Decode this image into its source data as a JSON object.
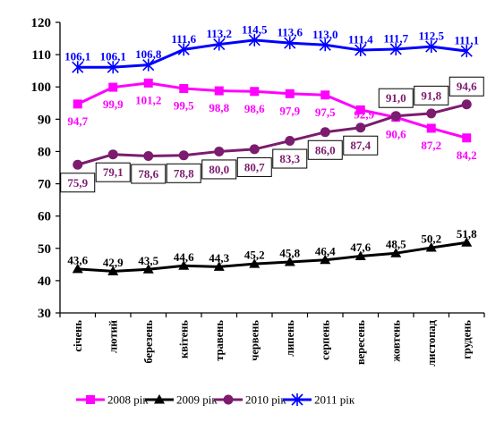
{
  "chart_data": {
    "type": "line",
    "categories": [
      "січень",
      "лютий",
      "березень",
      "квітень",
      "травень",
      "червень",
      "липень",
      "серпень",
      "вересень",
      "жовтень",
      "листопад",
      "грудень"
    ],
    "ylim": [
      30,
      120
    ],
    "yticks": [
      30,
      40,
      50,
      60,
      70,
      80,
      90,
      100,
      110,
      120
    ],
    "ytick_labels": [
      "30",
      "40",
      "50",
      "60",
      "70",
      "80",
      "90",
      "100",
      "110",
      "120"
    ],
    "grid": false,
    "legend_position": "bottom",
    "series": [
      {
        "name": "2008 рік",
        "color": "#FF00FF",
        "marker": "square",
        "values": [
          94.7,
          99.9,
          101.2,
          99.5,
          98.8,
          98.6,
          97.9,
          97.5,
          92.9,
          90.6,
          87.2,
          84.2
        ],
        "labels": [
          "94,7",
          "99,9",
          "101,2",
          "99,5",
          "98,8",
          "98,6",
          "97,9",
          "97,5",
          "92,9",
          "90,6",
          "87,2",
          "84,2"
        ]
      },
      {
        "name": "2009 рік",
        "color": "#000000",
        "marker": "triangle",
        "values": [
          43.6,
          42.9,
          43.5,
          44.6,
          44.3,
          45.2,
          45.8,
          46.4,
          47.6,
          48.5,
          50.2,
          51.8
        ],
        "labels": [
          "43,6",
          "42,9",
          "43,5",
          "44,6",
          "44,3",
          "45,2",
          "45,8",
          "46,4",
          "47,6",
          "48,5",
          "50,2",
          "51,8"
        ]
      },
      {
        "name": "2010 рік",
        "color": "#7B1C6E",
        "marker": "circle",
        "values": [
          75.9,
          79.1,
          78.6,
          78.8,
          80.0,
          80.7,
          83.3,
          86.0,
          87.4,
          91.0,
          91.8,
          94.6
        ],
        "labels": [
          "75,9",
          "79,1",
          "78,6",
          "78,8",
          "80,0",
          "80,7",
          "83,3",
          "86,0",
          "87,4",
          "91,0",
          "91,8",
          "94,6"
        ]
      },
      {
        "name": "2011 рік",
        "color": "#0000FF",
        "marker": "star",
        "values": [
          106.1,
          106.1,
          106.8,
          111.6,
          113.2,
          114.5,
          113.6,
          113.0,
          111.4,
          111.7,
          112.5,
          111.1
        ],
        "labels": [
          "106,1",
          "106,1",
          "106,8",
          "111,6",
          "113,2",
          "114,5",
          "113,6",
          "113,0",
          "111,4",
          "111,7",
          "112,5",
          "111,1"
        ]
      }
    ]
  }
}
